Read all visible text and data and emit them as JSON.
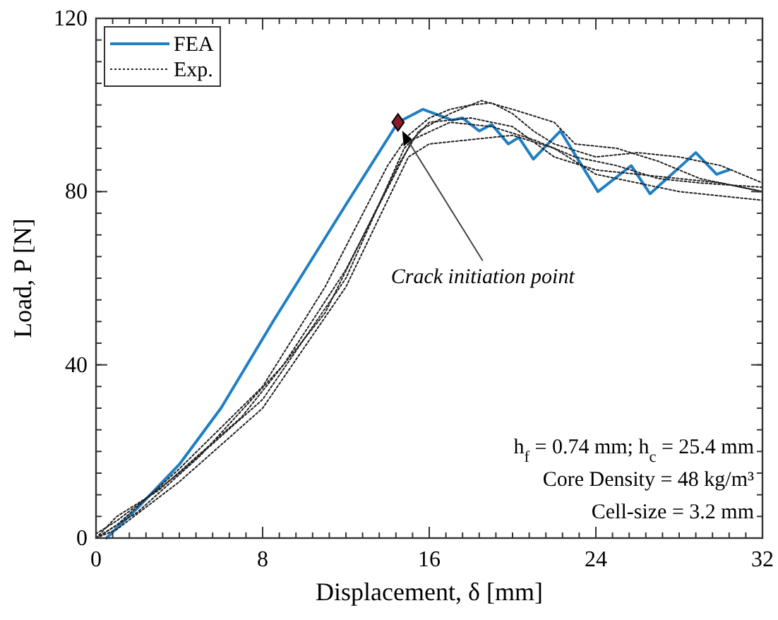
{
  "chart_data": {
    "type": "line",
    "xlabel": "Displacement, δ [mm]",
    "ylabel": "Load, P [N]",
    "xlim": [
      0,
      32
    ],
    "ylim": [
      0,
      120
    ],
    "xticks": [
      0,
      8,
      16,
      24,
      32
    ],
    "yticks": [
      0,
      40,
      80,
      120
    ],
    "grid": false,
    "legend": "top left",
    "series": [
      {
        "name": "FEA",
        "color": "#1f7fc4",
        "line_style": "solid",
        "x": [
          0.5,
          2,
          4,
          6,
          7,
          8.5,
          12,
          14.5,
          15.7,
          17.1,
          17.6,
          18.4,
          19.0,
          19.8,
          20.3,
          21.0,
          22.3,
          24.1,
          25.7,
          26.6,
          28.8,
          29.8,
          30.4
        ],
        "values": [
          0,
          7,
          17,
          30,
          38,
          50,
          77,
          96,
          99,
          96.5,
          97,
          94,
          95.5,
          91,
          92.5,
          87.5,
          94,
          80,
          86,
          79.5,
          89,
          84,
          85
        ]
      },
      {
        "name": "Exp.",
        "color": "#222222",
        "line_style": "dotted",
        "x": [
          0,
          1,
          4,
          8,
          11,
          14,
          15,
          16,
          17,
          18,
          19,
          20,
          21,
          22,
          24,
          26,
          28,
          30,
          32
        ],
        "values": [
          0,
          3,
          16,
          35,
          58,
          86,
          93,
          97,
          99,
          100,
          100.5,
          98,
          94,
          91,
          88,
          89,
          88,
          86,
          82
        ]
      },
      {
        "color": "#222222",
        "line_style": "dotted",
        "x": [
          0,
          1,
          4,
          8,
          12,
          14.8,
          16,
          18,
          20,
          22,
          24,
          26,
          28,
          30,
          32
        ],
        "values": [
          1,
          4,
          15,
          32,
          60,
          90,
          96,
          97,
          95,
          88,
          85,
          84,
          83,
          82,
          80
        ]
      },
      {
        "color": "#222222",
        "line_style": "dotted",
        "x": [
          0,
          1,
          4,
          8,
          12,
          15,
          16,
          18,
          20,
          22,
          24,
          26,
          28,
          30,
          32
        ],
        "values": [
          0,
          2,
          13,
          30,
          58,
          88,
          91,
          92,
          93,
          90,
          84,
          82,
          80,
          79,
          78
        ]
      },
      {
        "color": "#222222",
        "line_style": "dotted",
        "x": [
          0,
          2,
          5,
          9,
          12,
          15.2,
          17,
          19,
          21,
          23,
          25,
          27,
          29,
          32
        ],
        "values": [
          0,
          6,
          19,
          40,
          62,
          92,
          96,
          95,
          92,
          88,
          86,
          83,
          82,
          81
        ]
      },
      {
        "color": "#222222",
        "line_style": "dotted",
        "x": [
          0,
          1,
          3,
          7,
          11,
          14.5,
          15.5,
          17,
          18.5,
          20,
          22,
          23,
          25,
          27,
          29,
          32
        ],
        "values": [
          0,
          5,
          11,
          28,
          52,
          86,
          94,
          98,
          101,
          99,
          96,
          91,
          90,
          87,
          83,
          80
        ]
      },
      {
        "type": "scatter",
        "marker": "diamond",
        "color": "#8b1a2b",
        "x": [
          14.5
        ],
        "values": [
          96
        ]
      }
    ],
    "annotations": [
      {
        "text": "Crack initiation point",
        "x": 14.5,
        "y": 96
      },
      "h$_{f}$ = 0.74 mm; h$_{c}$ = 25.4 mm",
      "Core Density = 48 kg/m³",
      "Cell-size = 3.2 mm"
    ]
  }
}
